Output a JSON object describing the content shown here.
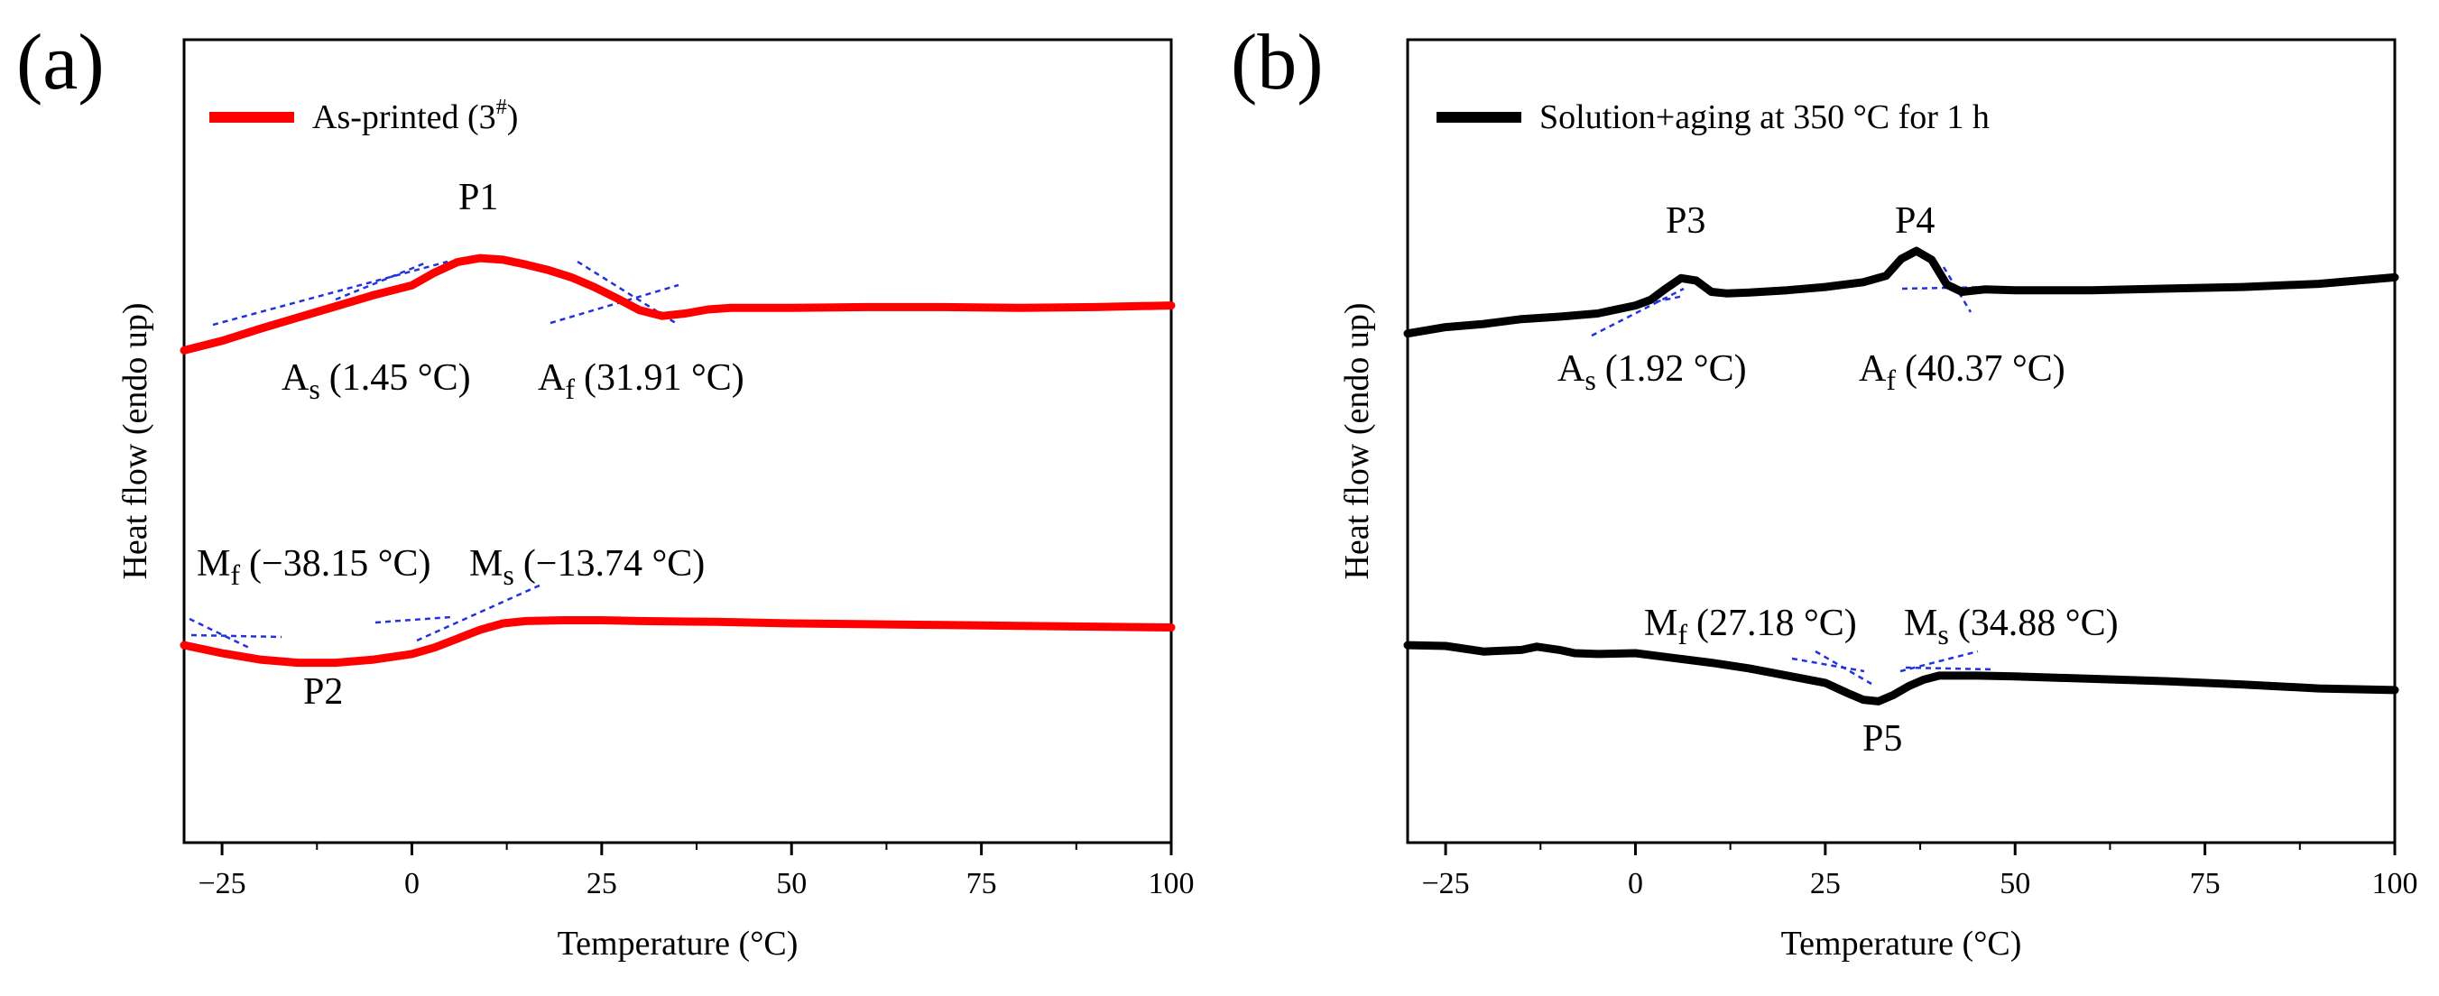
{
  "chart_data": [
    {
      "type": "line",
      "panel_label": "(a)",
      "xlabel": "Temperature (°C)",
      "ylabel": "Heat flow (endo up)",
      "xlim": [
        -30,
        100
      ],
      "ylim": [
        0,
        100
      ],
      "xticks": [
        -25,
        0,
        25,
        50,
        75,
        100
      ],
      "legend": {
        "position": "top-left",
        "label": "As-printed (3",
        "label_sup": "#",
        "label_end": ")",
        "color": "#ff0000"
      },
      "series": [
        {
          "name": "As-printed heating",
          "color": "#ff0000",
          "x": [
            -30,
            -25,
            -20,
            -15,
            -10,
            -5,
            0,
            3,
            6,
            9,
            12,
            15,
            18,
            21,
            24,
            27,
            30,
            33,
            36,
            39,
            42,
            50,
            60,
            70,
            80,
            90,
            100
          ],
          "y": [
            61.3,
            62.5,
            64.0,
            65.4,
            66.8,
            68.2,
            69.4,
            71.0,
            72.3,
            72.8,
            72.6,
            72.0,
            71.3,
            70.4,
            69.2,
            67.8,
            66.3,
            65.6,
            65.9,
            66.4,
            66.6,
            66.6,
            66.7,
            66.7,
            66.6,
            66.7,
            66.9
          ]
        },
        {
          "name": "As-printed cooling",
          "color": "#ff0000",
          "x": [
            -30,
            -25,
            -20,
            -15,
            -10,
            -5,
            0,
            3,
            6,
            9,
            12,
            15,
            20,
            25,
            30,
            40,
            50,
            60,
            70,
            80,
            90,
            100
          ],
          "y": [
            24.6,
            23.6,
            22.8,
            22.4,
            22.4,
            22.8,
            23.5,
            24.3,
            25.4,
            26.5,
            27.3,
            27.6,
            27.7,
            27.7,
            27.6,
            27.5,
            27.3,
            27.2,
            27.1,
            27.0,
            26.9,
            26.8
          ]
        }
      ],
      "peaks": [
        "P1",
        "P2"
      ],
      "annotations": [
        {
          "main": "A",
          "sub": "s",
          "value": "(1.45 °C)"
        },
        {
          "main": "A",
          "sub": "f",
          "value": "(31.91 °C)"
        },
        {
          "main": "M",
          "sub": "f",
          "value": "(−38.15 °C)"
        },
        {
          "main": "M",
          "sub": "s",
          "value": "(−13.74 °C)"
        }
      ]
    },
    {
      "type": "line",
      "panel_label": "(b)",
      "xlabel": "Temperature (°C)",
      "ylabel": "Heat flow (endo up)",
      "xlim": [
        -30,
        100
      ],
      "ylim": [
        0,
        100
      ],
      "xticks": [
        -25,
        0,
        25,
        50,
        75,
        100
      ],
      "legend": {
        "position": "top-left",
        "label": "Solution+aging at 350 °C for 1 h",
        "color": "#000000"
      },
      "series": [
        {
          "name": "Solution+aging heating",
          "color": "#000000",
          "x": [
            -30,
            -25,
            -20,
            -15,
            -10,
            -5,
            0,
            2,
            4,
            6,
            8,
            10,
            12,
            15,
            20,
            25,
            30,
            33,
            35,
            37,
            39,
            41,
            43,
            46,
            50,
            60,
            70,
            80,
            90,
            100
          ],
          "y": [
            63.4,
            64.2,
            64.6,
            65.2,
            65.5,
            65.9,
            66.9,
            67.6,
            69.0,
            70.3,
            70.0,
            68.6,
            68.4,
            68.5,
            68.8,
            69.2,
            69.8,
            70.6,
            72.7,
            73.7,
            72.6,
            69.5,
            68.6,
            68.9,
            68.8,
            68.8,
            69.0,
            69.2,
            69.6,
            70.4
          ]
        },
        {
          "name": "Solution+aging cooling",
          "color": "#000000",
          "x": [
            -30,
            -25,
            -20,
            -15,
            -13,
            -10,
            -8,
            -5,
            0,
            5,
            10,
            15,
            20,
            25,
            28,
            30,
            32,
            34,
            36,
            38,
            40,
            45,
            50,
            60,
            70,
            80,
            90,
            100
          ],
          "y": [
            24.6,
            24.5,
            23.8,
            24.0,
            24.4,
            24.0,
            23.6,
            23.5,
            23.6,
            23.0,
            22.4,
            21.7,
            20.8,
            19.9,
            18.6,
            17.8,
            17.6,
            18.4,
            19.5,
            20.3,
            20.8,
            20.8,
            20.7,
            20.4,
            20.1,
            19.7,
            19.2,
            19.0
          ]
        }
      ],
      "peaks": [
        "P3",
        "P4",
        "P5"
      ],
      "annotations": [
        {
          "main": "A",
          "sub": "s",
          "value": "(1.92 °C)"
        },
        {
          "main": "A",
          "sub": "f",
          "value": "(40.37 °C)"
        },
        {
          "main": "M",
          "sub": "f",
          "value": "(27.18 °C)"
        },
        {
          "main": "M",
          "sub": "s",
          "value": "(34.88 °C)"
        }
      ]
    }
  ]
}
